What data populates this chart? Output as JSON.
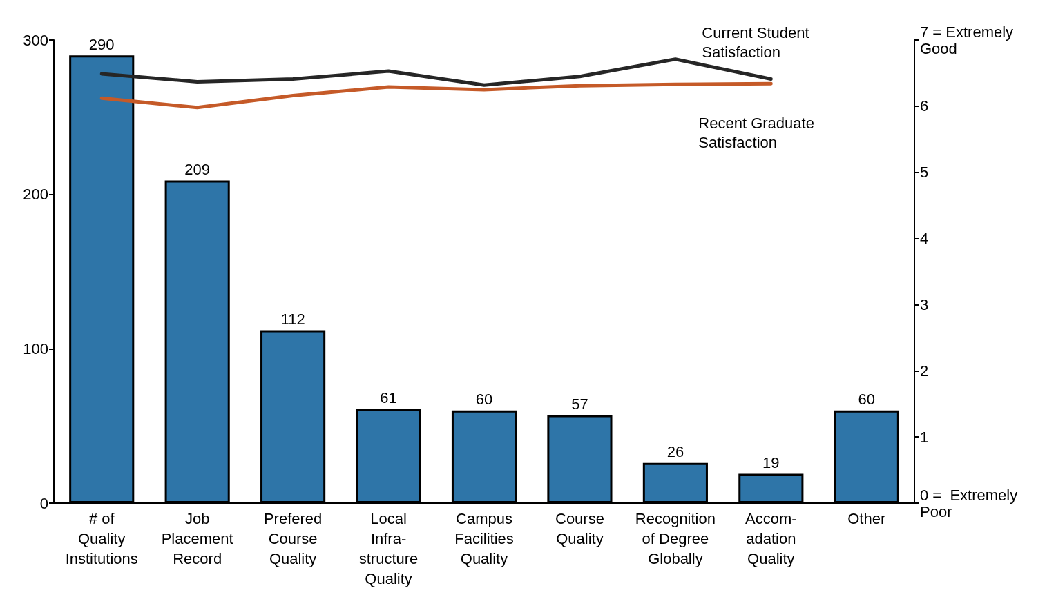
{
  "chart_data": {
    "type": "bar",
    "categories": [
      "# of\nQuality\nInstitutions",
      "Job\nPlacement\nRecord",
      "Prefered\nCourse\nQuality",
      "Local\nInfra-\nstructure\nQuality",
      "Campus\nFacilities\nQuality",
      "Course\nQuality",
      "Recognition\nof Degree\nGlobally",
      "Accom-\nadation\nQuality",
      "Other"
    ],
    "series": [
      {
        "color": "#2e75a8",
        "values": [
          290,
          209,
          112,
          61,
          60,
          57,
          26,
          19,
          60
        ],
        "value_labels": [
          "290",
          "209",
          "112",
          "61",
          "60",
          "57",
          "26",
          "19",
          "60"
        ]
      },
      {
        "type": "line",
        "axis": "y2",
        "name": "Current Student\nSatisfaction",
        "color": "#262626",
        "values": [
          6.49,
          6.37,
          6.41,
          6.53,
          6.32,
          6.45,
          6.71,
          6.41,
          null
        ]
      },
      {
        "type": "line",
        "axis": "y2",
        "name": "Recent Graduate\nSatisfaction",
        "color": "#c55a28",
        "values": [
          6.12,
          5.98,
          6.16,
          6.29,
          6.25,
          6.31,
          6.33,
          6.34,
          null
        ]
      }
    ],
    "ylim": [
      0,
      300
    ],
    "yticks": [
      0,
      100,
      200,
      300
    ],
    "y2lim": [
      0,
      7
    ],
    "y2ticks": [
      {
        "value": 0,
        "label": "0 =  Extremely\nPoor"
      },
      1,
      2,
      3,
      4,
      5,
      6,
      {
        "value": 7,
        "label": "7 = Extremely\nGood"
      }
    ],
    "grid": false,
    "legend": false,
    "marker": "none",
    "line_style": "solid"
  }
}
